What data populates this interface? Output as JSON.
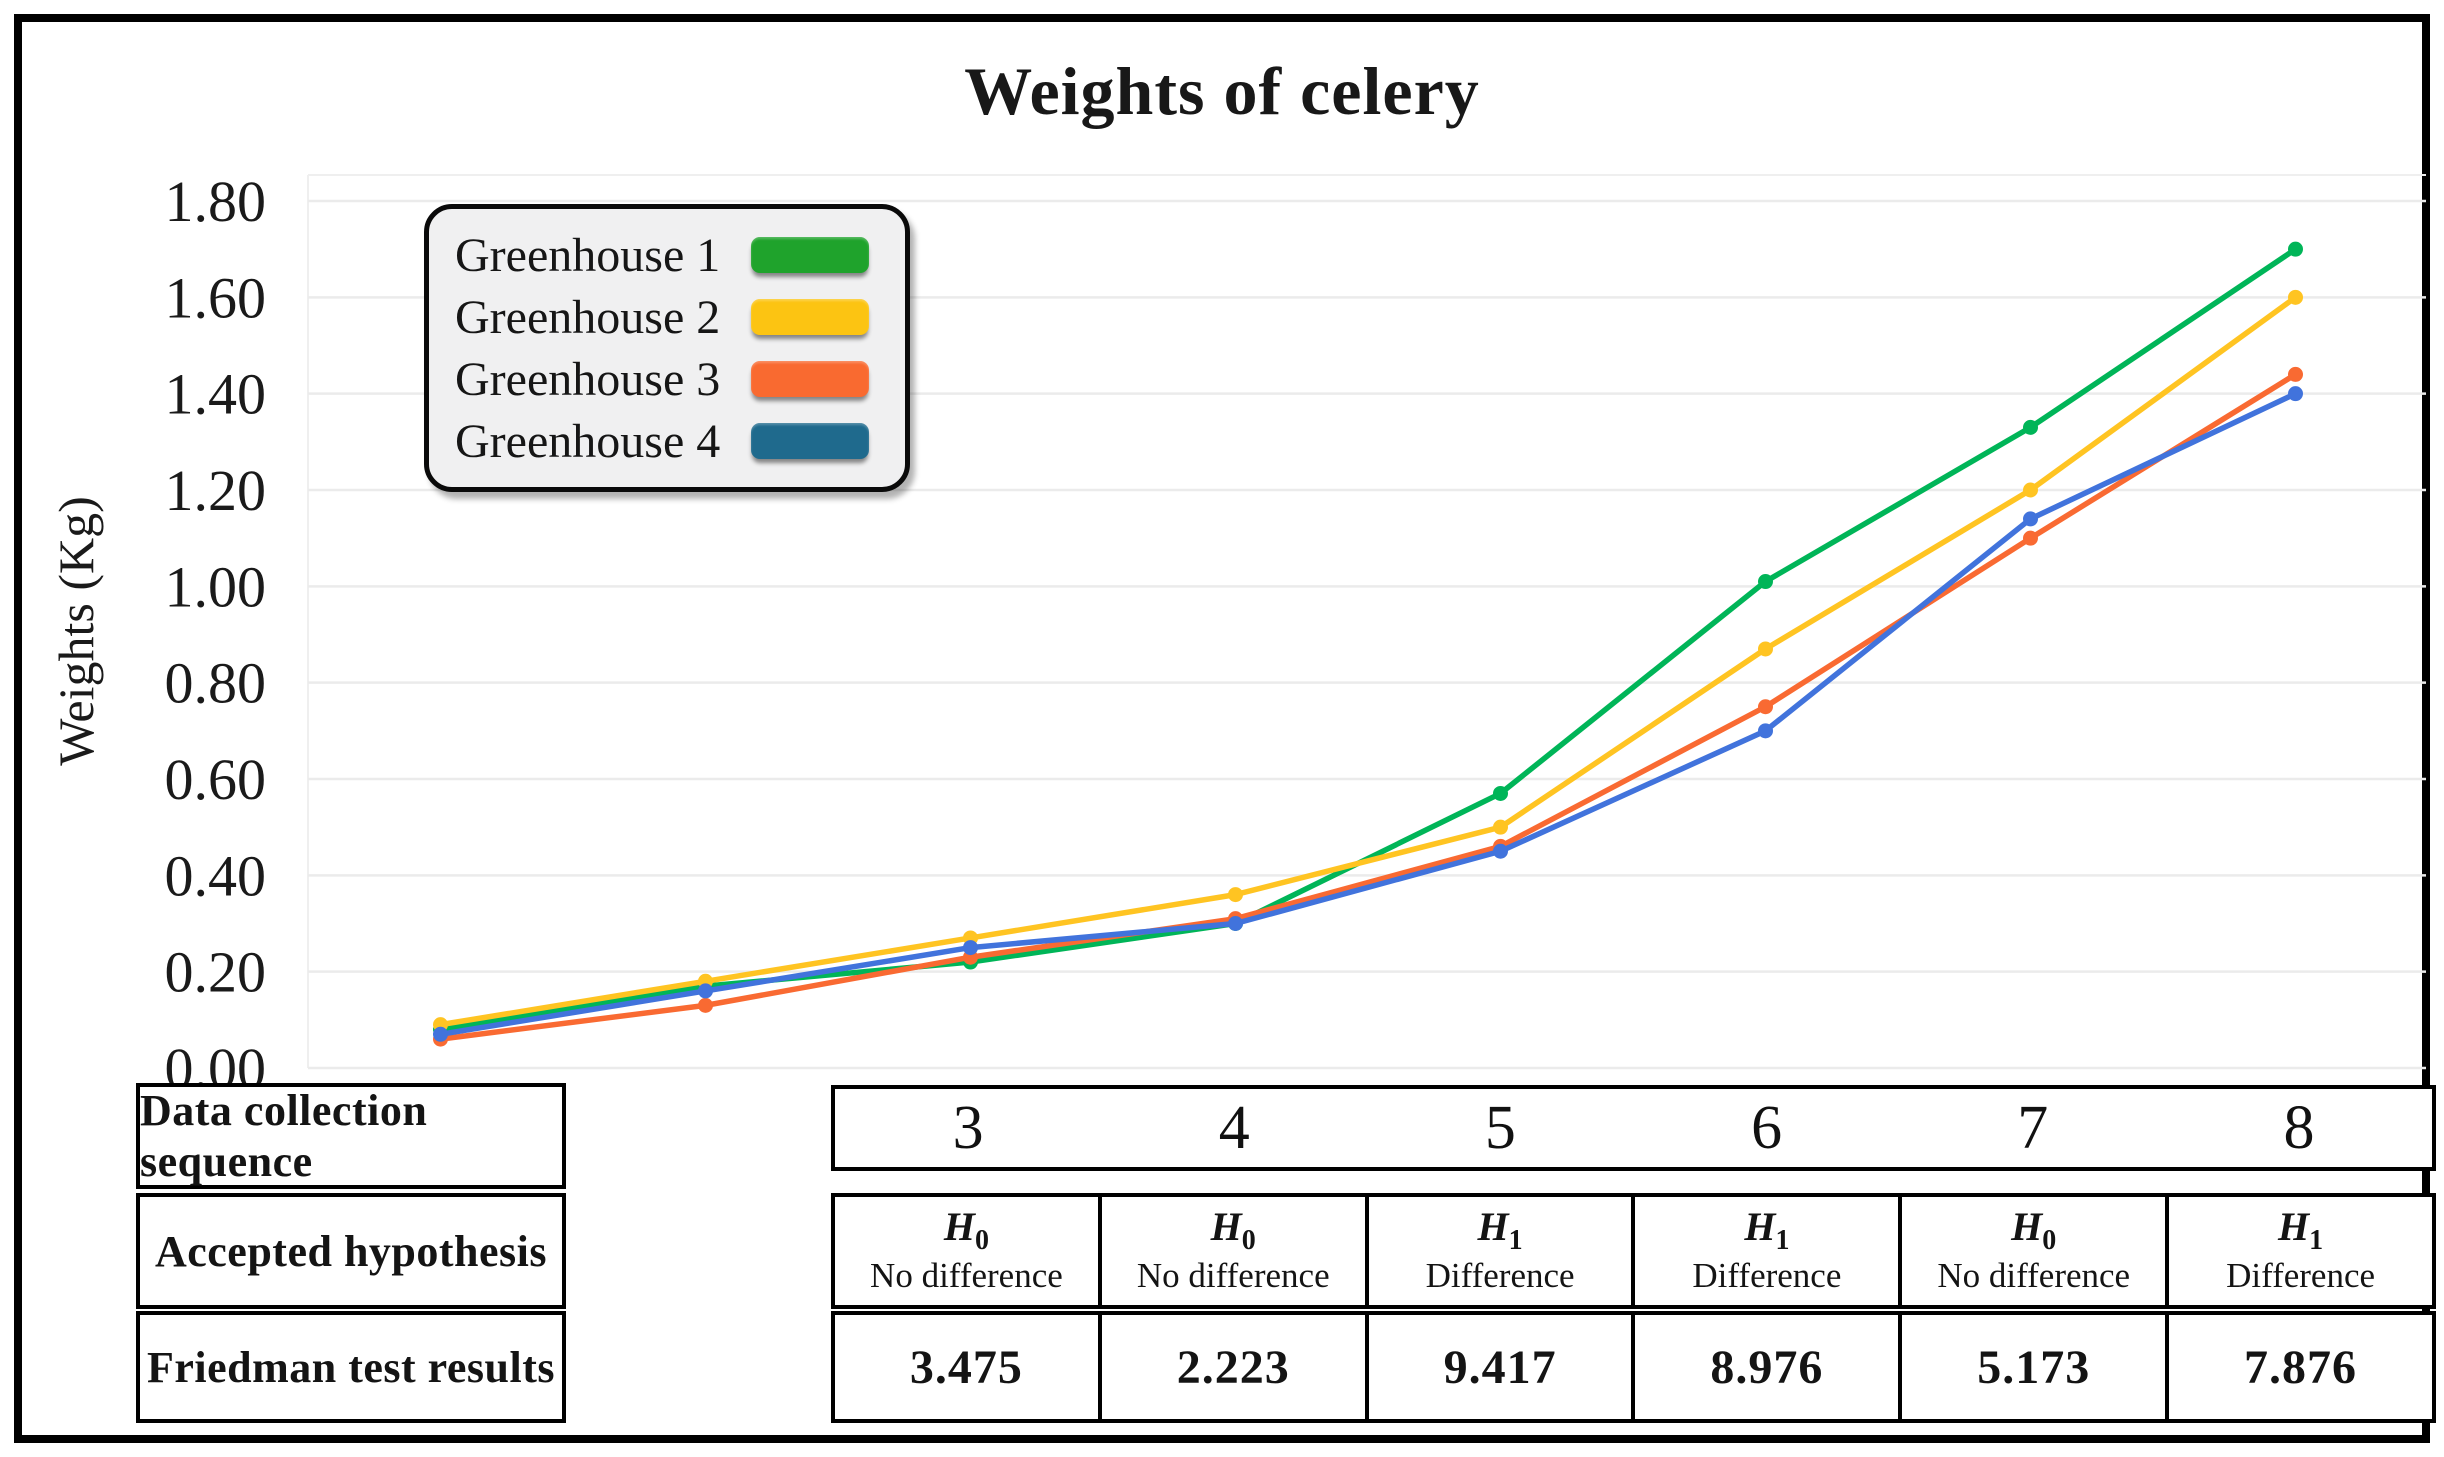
{
  "figure": {
    "title": "Weights of celery",
    "y_axis_label": "Weights (Kg)"
  },
  "legend": {
    "items": [
      {
        "label": "Greenhouse 1",
        "swatch_color": "#1fa32c"
      },
      {
        "label": "Greenhouse 2",
        "swatch_color": "#fcc412"
      },
      {
        "label": "Greenhouse 3",
        "swatch_color": "#f96a30"
      },
      {
        "label": "Greenhouse 4",
        "swatch_color": "#1f6a8d"
      }
    ]
  },
  "chart_data": {
    "type": "line",
    "title": "Weights of celery",
    "xlabel": "Data collection sequence",
    "ylabel": "Weights (Kg)",
    "x": [
      1,
      2,
      3,
      4,
      5,
      6,
      7,
      8
    ],
    "xlim": [
      1,
      8
    ],
    "ylim": [
      0,
      1.8
    ],
    "ytick_step": 0.2,
    "ytick_labels": [
      "0.00",
      "0.20",
      "0.40",
      "0.60",
      "0.80",
      "1.00",
      "1.20",
      "1.40",
      "1.60",
      "1.80"
    ],
    "grid": "horizontal",
    "legend_position": "top-left",
    "gridline_color": "#ebebeb",
    "series": [
      {
        "name": "Greenhouse 1",
        "color": "#00b558",
        "values": [
          0.08,
          0.17,
          0.22,
          0.3,
          0.57,
          1.01,
          1.33,
          1.7
        ]
      },
      {
        "name": "Greenhouse 2",
        "color": "#ffc422",
        "values": [
          0.09,
          0.18,
          0.27,
          0.36,
          0.5,
          0.87,
          1.2,
          1.6
        ]
      },
      {
        "name": "Greenhouse 3",
        "color": "#f96a32",
        "values": [
          0.06,
          0.13,
          0.23,
          0.31,
          0.46,
          0.75,
          1.1,
          1.44
        ]
      },
      {
        "name": "Greenhouse 4",
        "color": "#4173dc",
        "values": [
          0.07,
          0.16,
          0.25,
          0.3,
          0.45,
          0.7,
          1.14,
          1.4
        ]
      }
    ]
  },
  "table": {
    "row_headers": [
      "Data collection sequence",
      "Accepted hypothesis",
      "Friedman test results"
    ],
    "columns": [
      {
        "sequence": "3",
        "hypothesis_symbol": "H",
        "hypothesis_sub": "0",
        "hypothesis_label": "No difference",
        "result": "3.475"
      },
      {
        "sequence": "4",
        "hypothesis_symbol": "H",
        "hypothesis_sub": "0",
        "hypothesis_label": "No difference",
        "result": "2.223"
      },
      {
        "sequence": "5",
        "hypothesis_symbol": "H",
        "hypothesis_sub": "1",
        "hypothesis_label": "Difference",
        "result": "9.417"
      },
      {
        "sequence": "6",
        "hypothesis_symbol": "H",
        "hypothesis_sub": "1",
        "hypothesis_label": "Difference",
        "result": "8.976"
      },
      {
        "sequence": "7",
        "hypothesis_symbol": "H",
        "hypothesis_sub": "0",
        "hypothesis_label": "No difference",
        "result": "5.173"
      },
      {
        "sequence": "8",
        "hypothesis_symbol": "H",
        "hypothesis_sub": "1",
        "hypothesis_label": "Difference",
        "result": "7.876"
      }
    ]
  }
}
